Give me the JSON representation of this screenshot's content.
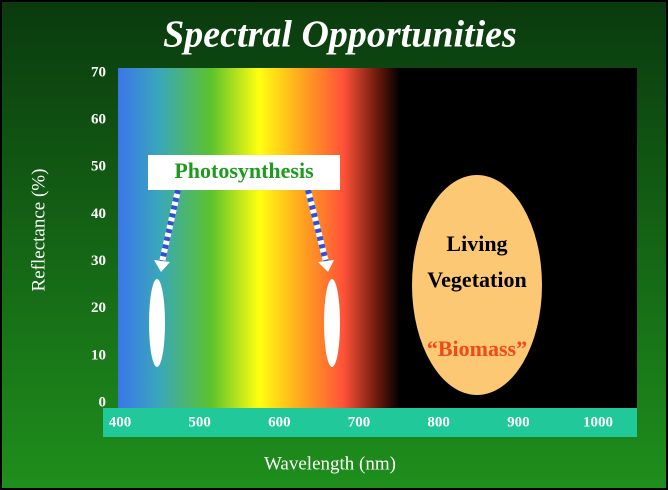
{
  "chart_data": {
    "type": "spectrum",
    "title": "Spectral Opportunities",
    "xlabel": "Wavelength (nm)",
    "ylabel": "Reflectance (%)",
    "xlim": [
      400,
      1000
    ],
    "xticks": [
      400,
      500,
      600,
      700,
      800,
      900,
      1000
    ],
    "ylim": [
      0,
      70
    ],
    "yticks": [
      0,
      10,
      20,
      30,
      40,
      50,
      60,
      70
    ],
    "grid": false,
    "annotations": {
      "photosynthesis": "Photosynthesis",
      "vegetation": [
        "Living",
        "Vegetation"
      ],
      "biomass": "“Biomass”"
    }
  }
}
